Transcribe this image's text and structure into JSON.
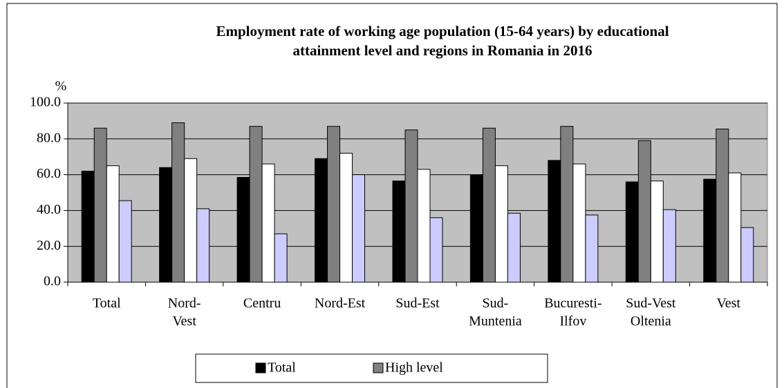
{
  "chart_data": {
    "type": "bar",
    "title": [
      "Employment rate of working age population (15-64 years) by educational",
      "attainment level and regions in Romania in 2016"
    ],
    "y_label": "%",
    "categories": [
      [
        "Total"
      ],
      [
        "Nord-",
        "Vest"
      ],
      [
        "Centru"
      ],
      [
        "Nord-Est"
      ],
      [
        "Sud-Est"
      ],
      [
        "Sud-",
        "Muntenia"
      ],
      [
        "Bucuresti-",
        "Ilfov"
      ],
      [
        "Sud-Vest",
        "Oltenia"
      ],
      [
        "Vest"
      ]
    ],
    "series": [
      {
        "name": "Total",
        "color": "#000000",
        "values": [
          62,
          64,
          58.5,
          69,
          56.5,
          60,
          68,
          56,
          57.5
        ]
      },
      {
        "name": "High level",
        "color": "#808080",
        "values": [
          86,
          89,
          87,
          87,
          85,
          86,
          87,
          79,
          85.5
        ]
      },
      {
        "color": "#ffffff",
        "values": [
          65,
          69,
          66,
          72,
          63,
          65,
          66,
          56.5,
          61
        ]
      },
      {
        "color": "#ccccff",
        "values": [
          45.5,
          41,
          27,
          60,
          36,
          38.5,
          37.5,
          40.5,
          30.5
        ]
      }
    ],
    "ylim": [
      0,
      100
    ],
    "yticks": [
      {
        "value": 0,
        "label": "0.0"
      },
      {
        "value": 20,
        "label": "20.0"
      },
      {
        "value": 40,
        "label": "40.0"
      },
      {
        "value": 60,
        "label": "60.0"
      },
      {
        "value": 80,
        "label": "80.0"
      },
      {
        "value": 100,
        "label": "100.0"
      }
    ],
    "grid": true,
    "plot_background": "#c0c0c0"
  }
}
